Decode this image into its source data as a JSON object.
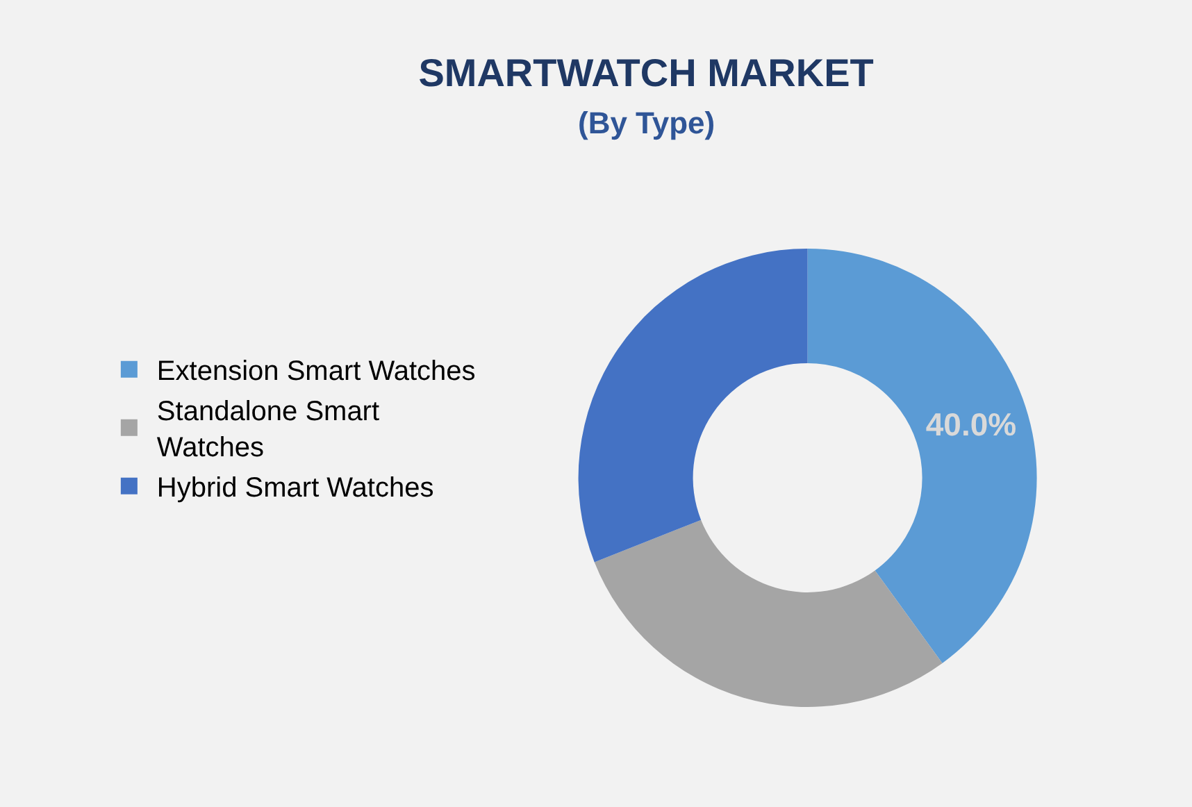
{
  "chart_data": {
    "type": "donut",
    "title": "SMARTWATCH MARKET",
    "subtitle": "(By Type)",
    "categories": [
      "Extension Smart Watches",
      "Standalone Smart Watches",
      "Hybrid Smart Watches"
    ],
    "values": [
      40,
      29,
      31
    ],
    "colors": [
      "#5b9bd5",
      "#a5a5a5",
      "#4472c4"
    ],
    "value_labels": [
      "40.0%",
      null,
      null
    ],
    "legend": "left"
  }
}
